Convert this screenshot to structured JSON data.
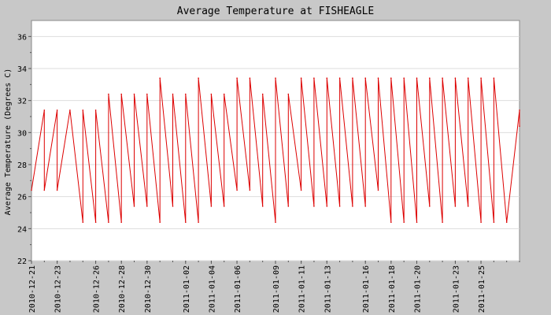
{
  "chart_data": {
    "type": "line",
    "title": "Average Temperature at FISHEAGLE",
    "ylabel": "Average Temperature (Degrees C)",
    "xlabel": "",
    "ylim": [
      22,
      37
    ],
    "yticks": [
      22,
      24,
      26,
      28,
      30,
      32,
      34,
      36
    ],
    "x_start": "2010-12-21",
    "x_end": "2011-01-28",
    "xticks": [
      "2010-12-21",
      "2010-12-23",
      "2010-12-26",
      "2010-12-28",
      "2010-12-30",
      "2011-01-02",
      "2011-01-04",
      "2011-01-06",
      "2011-01-09",
      "2011-01-11",
      "2011-01-13",
      "2011-01-16",
      "2011-01-18",
      "2011-01-20",
      "2011-01-23",
      "2011-01-25"
    ],
    "grid": true,
    "legend": "none",
    "line_color": "#dd0000",
    "series": [
      {
        "values": [
          {
            "x": "2010-12-21",
            "y": 26.4
          },
          {
            "x": "2010-12-22",
            "y": 31.4
          },
          {
            "x": "2010-12-22",
            "y": 26.4
          },
          {
            "x": "2010-12-23",
            "y": 31.4
          },
          {
            "x": "2010-12-23",
            "y": 26.4
          },
          {
            "x": "2010-12-24",
            "y": 31.4
          },
          {
            "x": "2010-12-25",
            "y": 24.4
          },
          {
            "x": "2010-12-25",
            "y": 31.4
          },
          {
            "x": "2010-12-26",
            "y": 24.4
          },
          {
            "x": "2010-12-26",
            "y": 31.4
          },
          {
            "x": "2010-12-27",
            "y": 24.4
          },
          {
            "x": "2010-12-27",
            "y": 32.4
          },
          {
            "x": "2010-12-28",
            "y": 24.4
          },
          {
            "x": "2010-12-28",
            "y": 32.4
          },
          {
            "x": "2010-12-29",
            "y": 25.4
          },
          {
            "x": "2010-12-29",
            "y": 32.4
          },
          {
            "x": "2010-12-30",
            "y": 25.4
          },
          {
            "x": "2010-12-30",
            "y": 32.4
          },
          {
            "x": "2010-12-31",
            "y": 24.4
          },
          {
            "x": "2010-12-31",
            "y": 33.4
          },
          {
            "x": "2011-01-01",
            "y": 25.4
          },
          {
            "x": "2011-01-01",
            "y": 32.4
          },
          {
            "x": "2011-01-02",
            "y": 24.4
          },
          {
            "x": "2011-01-02",
            "y": 32.4
          },
          {
            "x": "2011-01-03",
            "y": 24.4
          },
          {
            "x": "2011-01-03",
            "y": 33.4
          },
          {
            "x": "2011-01-04",
            "y": 25.4
          },
          {
            "x": "2011-01-04",
            "y": 32.4
          },
          {
            "x": "2011-01-05",
            "y": 25.4
          },
          {
            "x": "2011-01-05",
            "y": 32.4
          },
          {
            "x": "2011-01-06",
            "y": 26.4
          },
          {
            "x": "2011-01-06",
            "y": 33.4
          },
          {
            "x": "2011-01-07",
            "y": 26.4
          },
          {
            "x": "2011-01-07",
            "y": 33.4
          },
          {
            "x": "2011-01-08",
            "y": 25.4
          },
          {
            "x": "2011-01-08",
            "y": 32.4
          },
          {
            "x": "2011-01-09",
            "y": 24.4
          },
          {
            "x": "2011-01-09",
            "y": 33.4
          },
          {
            "x": "2011-01-10",
            "y": 25.4
          },
          {
            "x": "2011-01-10",
            "y": 32.4
          },
          {
            "x": "2011-01-11",
            "y": 26.4
          },
          {
            "x": "2011-01-11",
            "y": 33.4
          },
          {
            "x": "2011-01-12",
            "y": 25.4
          },
          {
            "x": "2011-01-12",
            "y": 33.4
          },
          {
            "x": "2011-01-13",
            "y": 25.4
          },
          {
            "x": "2011-01-13",
            "y": 33.4
          },
          {
            "x": "2011-01-14",
            "y": 25.4
          },
          {
            "x": "2011-01-14",
            "y": 33.4
          },
          {
            "x": "2011-01-15",
            "y": 25.4
          },
          {
            "x": "2011-01-15",
            "y": 33.4
          },
          {
            "x": "2011-01-16",
            "y": 25.4
          },
          {
            "x": "2011-01-16",
            "y": 33.4
          },
          {
            "x": "2011-01-17",
            "y": 26.4
          },
          {
            "x": "2011-01-17",
            "y": 33.4
          },
          {
            "x": "2011-01-18",
            "y": 24.4
          },
          {
            "x": "2011-01-18",
            "y": 33.4
          },
          {
            "x": "2011-01-19",
            "y": 24.4
          },
          {
            "x": "2011-01-19",
            "y": 33.4
          },
          {
            "x": "2011-01-20",
            "y": 24.4
          },
          {
            "x": "2011-01-20",
            "y": 33.4
          },
          {
            "x": "2011-01-21",
            "y": 25.4
          },
          {
            "x": "2011-01-21",
            "y": 33.4
          },
          {
            "x": "2011-01-22",
            "y": 24.4
          },
          {
            "x": "2011-01-22",
            "y": 33.4
          },
          {
            "x": "2011-01-23",
            "y": 25.4
          },
          {
            "x": "2011-01-23",
            "y": 33.4
          },
          {
            "x": "2011-01-24",
            "y": 25.4
          },
          {
            "x": "2011-01-24",
            "y": 33.4
          },
          {
            "x": "2011-01-25",
            "y": 24.4
          },
          {
            "x": "2011-01-25",
            "y": 33.4
          },
          {
            "x": "2011-01-26",
            "y": 24.4
          },
          {
            "x": "2011-01-26",
            "y": 33.4
          },
          {
            "x": "2011-01-27",
            "y": 24.4
          },
          {
            "x": "2011-01-28",
            "y": 31.4
          },
          {
            "x": "2011-01-28",
            "y": 30.4
          }
        ]
      }
    ]
  }
}
